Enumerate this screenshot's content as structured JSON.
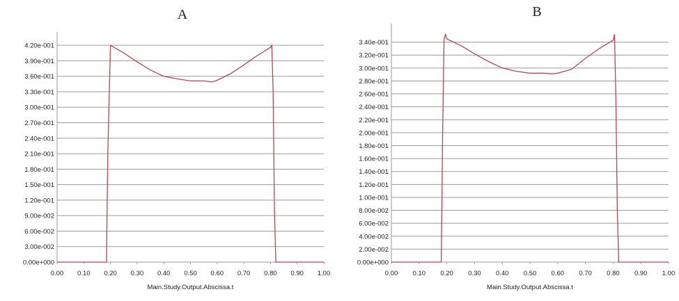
{
  "colors": {
    "series": "#b5474f",
    "grid": "#9a9a9a",
    "background": "#ffffff"
  },
  "chart_data": [
    {
      "type": "line",
      "title": "A",
      "xlabel": "Main.Study.Output.Abscissa.t",
      "ylabel": "",
      "xlim": [
        0,
        1
      ],
      "ylim": [
        0,
        0.435
      ],
      "grid": "horizontal",
      "xticks": [
        "0.00",
        "0.10",
        "0.20",
        "0.30",
        "0.40",
        "0.50",
        "0.60",
        "0.70",
        "0.80",
        "0.90",
        "1.00"
      ],
      "yticks": [
        "0.00e+000",
        "3.00e-002",
        "6.00e-002",
        "9.00e-002",
        "1.20e-001",
        "1.50e-001",
        "1.80e-001",
        "2.10e-001",
        "2.40e-001",
        "2.70e-001",
        "3.00e-001",
        "3.30e-001",
        "3.60e-001",
        "3.90e-001",
        "4.20e-001"
      ],
      "series": [
        {
          "x": [
            0.0,
            0.185,
            0.19,
            0.2,
            0.25,
            0.3,
            0.35,
            0.4,
            0.45,
            0.5,
            0.55,
            0.58,
            0.6,
            0.65,
            0.7,
            0.75,
            0.8,
            0.805,
            0.81,
            0.815,
            0.82,
            1.0
          ],
          "y": [
            0,
            0,
            0.21,
            0.42,
            0.405,
            0.388,
            0.372,
            0.36,
            0.355,
            0.351,
            0.351,
            0.349,
            0.352,
            0.365,
            0.382,
            0.4,
            0.416,
            0.42,
            0.33,
            0.1,
            0,
            0
          ]
        }
      ]
    },
    {
      "type": "line",
      "title": "B",
      "xlabel": "Main.Study.Output.Abscissa.t",
      "ylabel": "",
      "xlim": [
        0,
        1
      ],
      "ylim": [
        0,
        0.36
      ],
      "grid": "horizontal",
      "xticks": [
        "0.00",
        "0.10",
        "0.20",
        "0.30",
        "0.40",
        "0.50",
        "0.60",
        "0.70",
        "0.80",
        "0.90",
        "1.00"
      ],
      "yticks": [
        "0.00e+000",
        "2.00e-002",
        "4.00e-002",
        "6.00e-002",
        "8.00e-002",
        "1.00e-001",
        "1.20e-001",
        "1.40e-001",
        "1.60e-001",
        "1.80e-001",
        "2.00e-001",
        "2.20e-001",
        "2.40e-001",
        "2.60e-001",
        "2.80e-001",
        "3.00e-001",
        "3.20e-001",
        "3.40e-001"
      ],
      "series": [
        {
          "x": [
            0.0,
            0.18,
            0.185,
            0.19,
            0.195,
            0.2,
            0.25,
            0.3,
            0.35,
            0.4,
            0.45,
            0.5,
            0.55,
            0.58,
            0.6,
            0.65,
            0.7,
            0.75,
            0.8,
            0.805,
            0.81,
            0.815,
            0.82,
            1.0
          ],
          "y": [
            0,
            0,
            0.2,
            0.345,
            0.352,
            0.345,
            0.335,
            0.322,
            0.31,
            0.3,
            0.295,
            0.292,
            0.292,
            0.291,
            0.292,
            0.298,
            0.315,
            0.33,
            0.343,
            0.352,
            0.25,
            0.08,
            0,
            0
          ]
        }
      ]
    }
  ]
}
